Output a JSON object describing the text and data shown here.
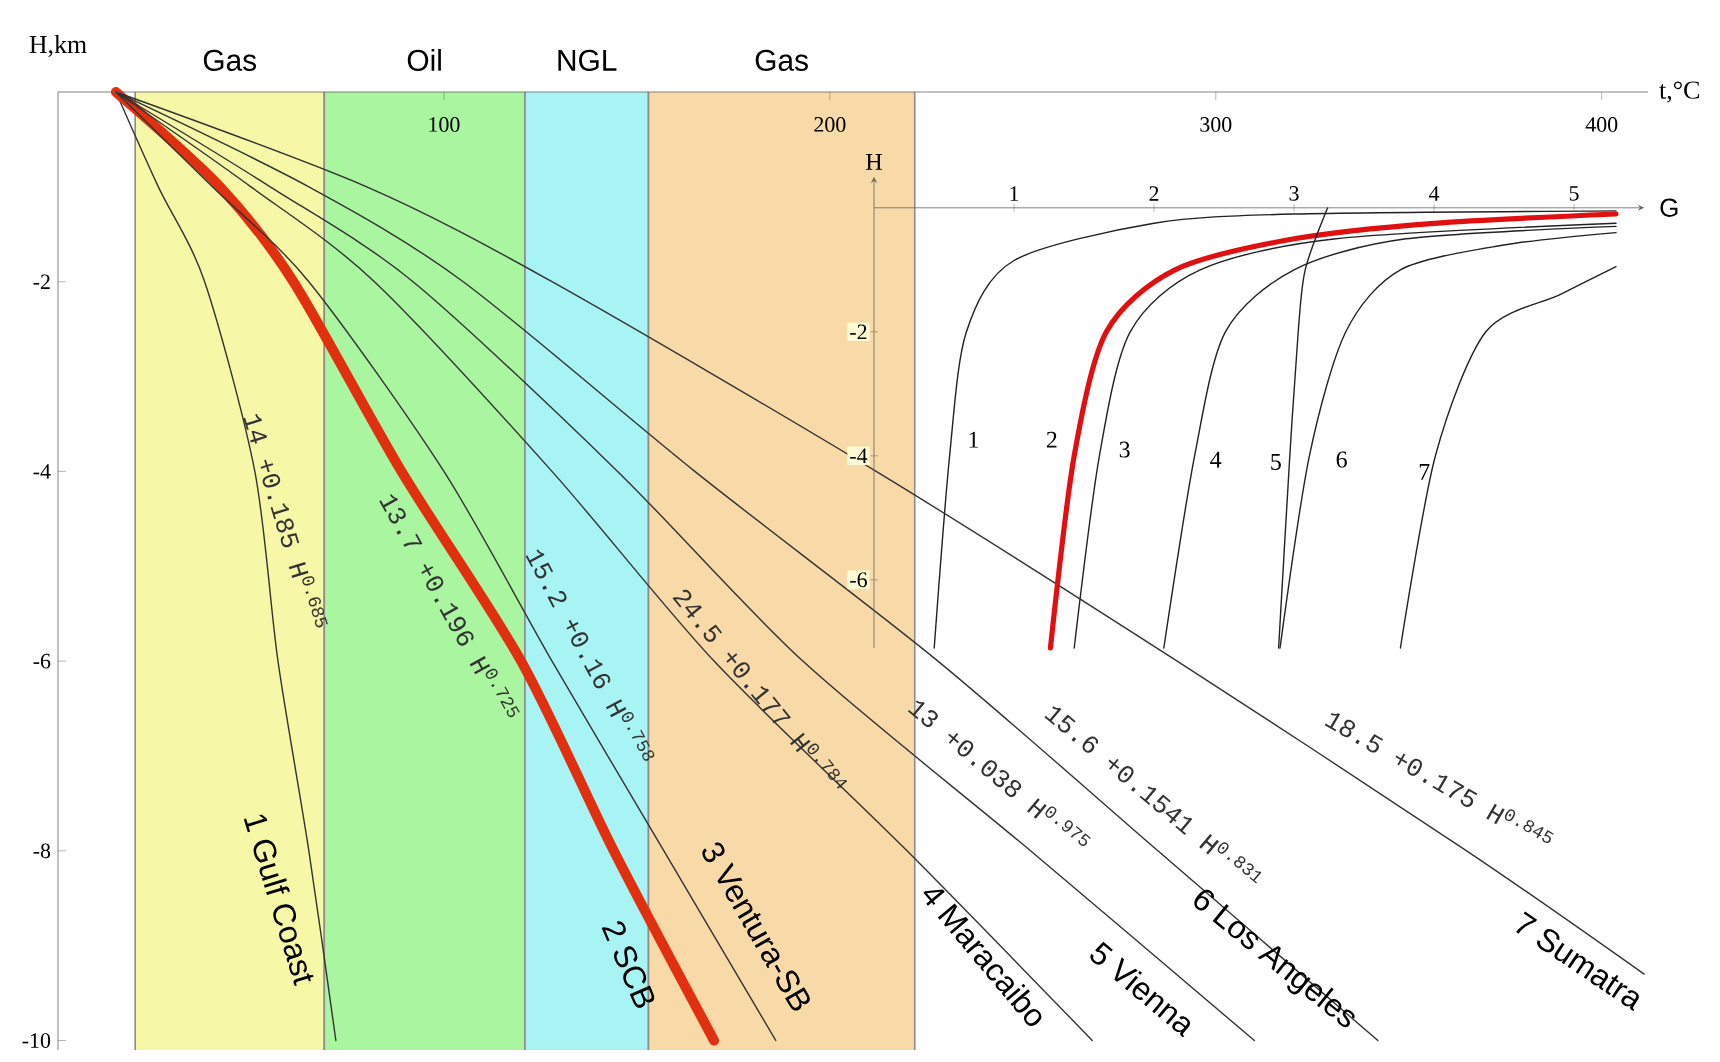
{
  "chart_data": [
    {
      "type": "line",
      "xlabel": "t,°C",
      "ylabel": "H,km",
      "xlim": [
        0,
        412
      ],
      "ylim": [
        -10.1,
        0
      ],
      "xticks": [
        100,
        200,
        300,
        400
      ],
      "yticks": [
        -10,
        -8,
        -6,
        -4,
        -2
      ],
      "bands": [
        {
          "axis": "x",
          "from": 20,
          "to": 69,
          "label": "Gas",
          "color": "#f7f7a8"
        },
        {
          "axis": "x",
          "from": 69,
          "to": 121,
          "label": "Oil",
          "color": "#aaf5a0"
        },
        {
          "axis": "x",
          "from": 121,
          "to": 153,
          "label": "NGL",
          "color": "#a8f4f4"
        },
        {
          "axis": "x",
          "from": 153,
          "to": 222,
          "label": "Gas",
          "color": "#f8d9a8"
        }
      ],
      "annotations": [
        "14 +0.185 H$^{0.685}$",
        "13.7 +0.196 H$^{0.725}$",
        "15.2 +0.16 H$^{0.758}$",
        "24.5 +0.177 H$^{0.784}$",
        "13 +0.038 H$^{0.975}$",
        "15.6 +0.1541 H$^{0.831}$",
        "18.5 +0.175 H$^{0.845}$"
      ],
      "series": [
        {
          "name": "1 Gulf Coast",
          "color": "#333333",
          "x": [
            15,
            26,
            38,
            51,
            57,
            65,
            72
          ],
          "values": [
            0,
            -1,
            -2,
            -4,
            -6,
            -8,
            -10
          ]
        },
        {
          "name": "2 SCB",
          "color": "#e0300f",
          "x": [
            15,
            42,
            61,
            89,
            120,
            144,
            170
          ],
          "values": [
            0,
            -1,
            -2,
            -4,
            -6,
            -8,
            -10
          ]
        },
        {
          "name": "3 Ventura-SB",
          "color": "#333333",
          "x": [
            15,
            40,
            65,
            100,
            128,
            157,
            186
          ],
          "values": [
            0,
            -1,
            -2,
            -4,
            -6,
            -8,
            -10
          ]
        },
        {
          "name": "4 Maracaibo",
          "color": "#333333",
          "x": [
            15,
            50,
            82,
            128,
            170,
            220,
            268
          ],
          "values": [
            0,
            -1,
            -2,
            -4,
            -6,
            -8,
            -10
          ]
        },
        {
          "name": "5 Vienna",
          "color": "#333333",
          "x": [
            15,
            55,
            92,
            145,
            193,
            252,
            310
          ],
          "values": [
            0,
            -1,
            -2,
            -4,
            -6,
            -8,
            -10
          ]
        },
        {
          "name": "6 Los Angeles",
          "color": "#333333",
          "x": [
            15,
            65,
            105,
            165,
            228,
            285,
            342
          ],
          "values": [
            0,
            -1,
            -2,
            -4,
            -6,
            -8,
            -10
          ]
        },
        {
          "name": "7 Sumatra",
          "color": "#333333",
          "x": [
            15,
            80,
            128,
            212,
            290,
            365,
            411
          ],
          "values": [
            0,
            -1,
            -2,
            -4,
            -6,
            -8,
            -9.3
          ]
        }
      ]
    },
    {
      "type": "line",
      "xlabel": "G",
      "ylabel": "H",
      "xlim": [
        0,
        5.5
      ],
      "ylim": [
        -7.1,
        0.5
      ],
      "xticks": [
        1,
        2,
        3,
        4,
        5
      ],
      "yticks": [
        -6,
        -4,
        -2
      ],
      "series": [
        {
          "name": "1",
          "color": "#222222",
          "x": [
            0.43,
            0.54,
            0.66,
            1.0,
            2.0,
            3.0,
            5.3
          ],
          "values": [
            -7.1,
            -4,
            -2,
            -0.85,
            -0.25,
            -0.1,
            -0.05
          ]
        },
        {
          "name": "2",
          "color": "#e01010",
          "x": [
            1.26,
            1.43,
            1.66,
            2.15,
            3.0,
            4.0,
            5.3
          ],
          "values": [
            -7.1,
            -4,
            -2,
            -1,
            -0.5,
            -0.25,
            -0.1
          ]
        },
        {
          "name": "3",
          "color": "#222222",
          "x": [
            1.43,
            1.61,
            1.83,
            2.33,
            3.3,
            5.3
          ],
          "values": [
            -7.1,
            -4,
            -2,
            -1,
            -0.5,
            -0.25
          ]
        },
        {
          "name": "4",
          "color": "#222222",
          "x": [
            2.07,
            2.29,
            2.51,
            3.0,
            3.8,
            5.3
          ],
          "values": [
            -7.1,
            -4,
            -2,
            -1,
            -0.5,
            -0.3
          ]
        },
        {
          "name": "5",
          "color": "#222222",
          "x": [
            2.89,
            2.97,
            3.03,
            3.08,
            3.24
          ],
          "values": [
            -7.1,
            -4,
            -2,
            -1,
            0
          ]
        },
        {
          "name": "6",
          "color": "#222222",
          "x": [
            2.9,
            3.11,
            3.37,
            3.76,
            4.5,
            5.3
          ],
          "values": [
            -7.1,
            -4,
            -2,
            -1,
            -0.6,
            -0.4
          ]
        },
        {
          "name": "7",
          "color": "#222222",
          "x": [
            3.76,
            4.01,
            4.37,
            4.9,
            5.3
          ],
          "values": [
            -7.1,
            -4,
            -2,
            -1.4,
            -0.95
          ]
        }
      ]
    }
  ]
}
